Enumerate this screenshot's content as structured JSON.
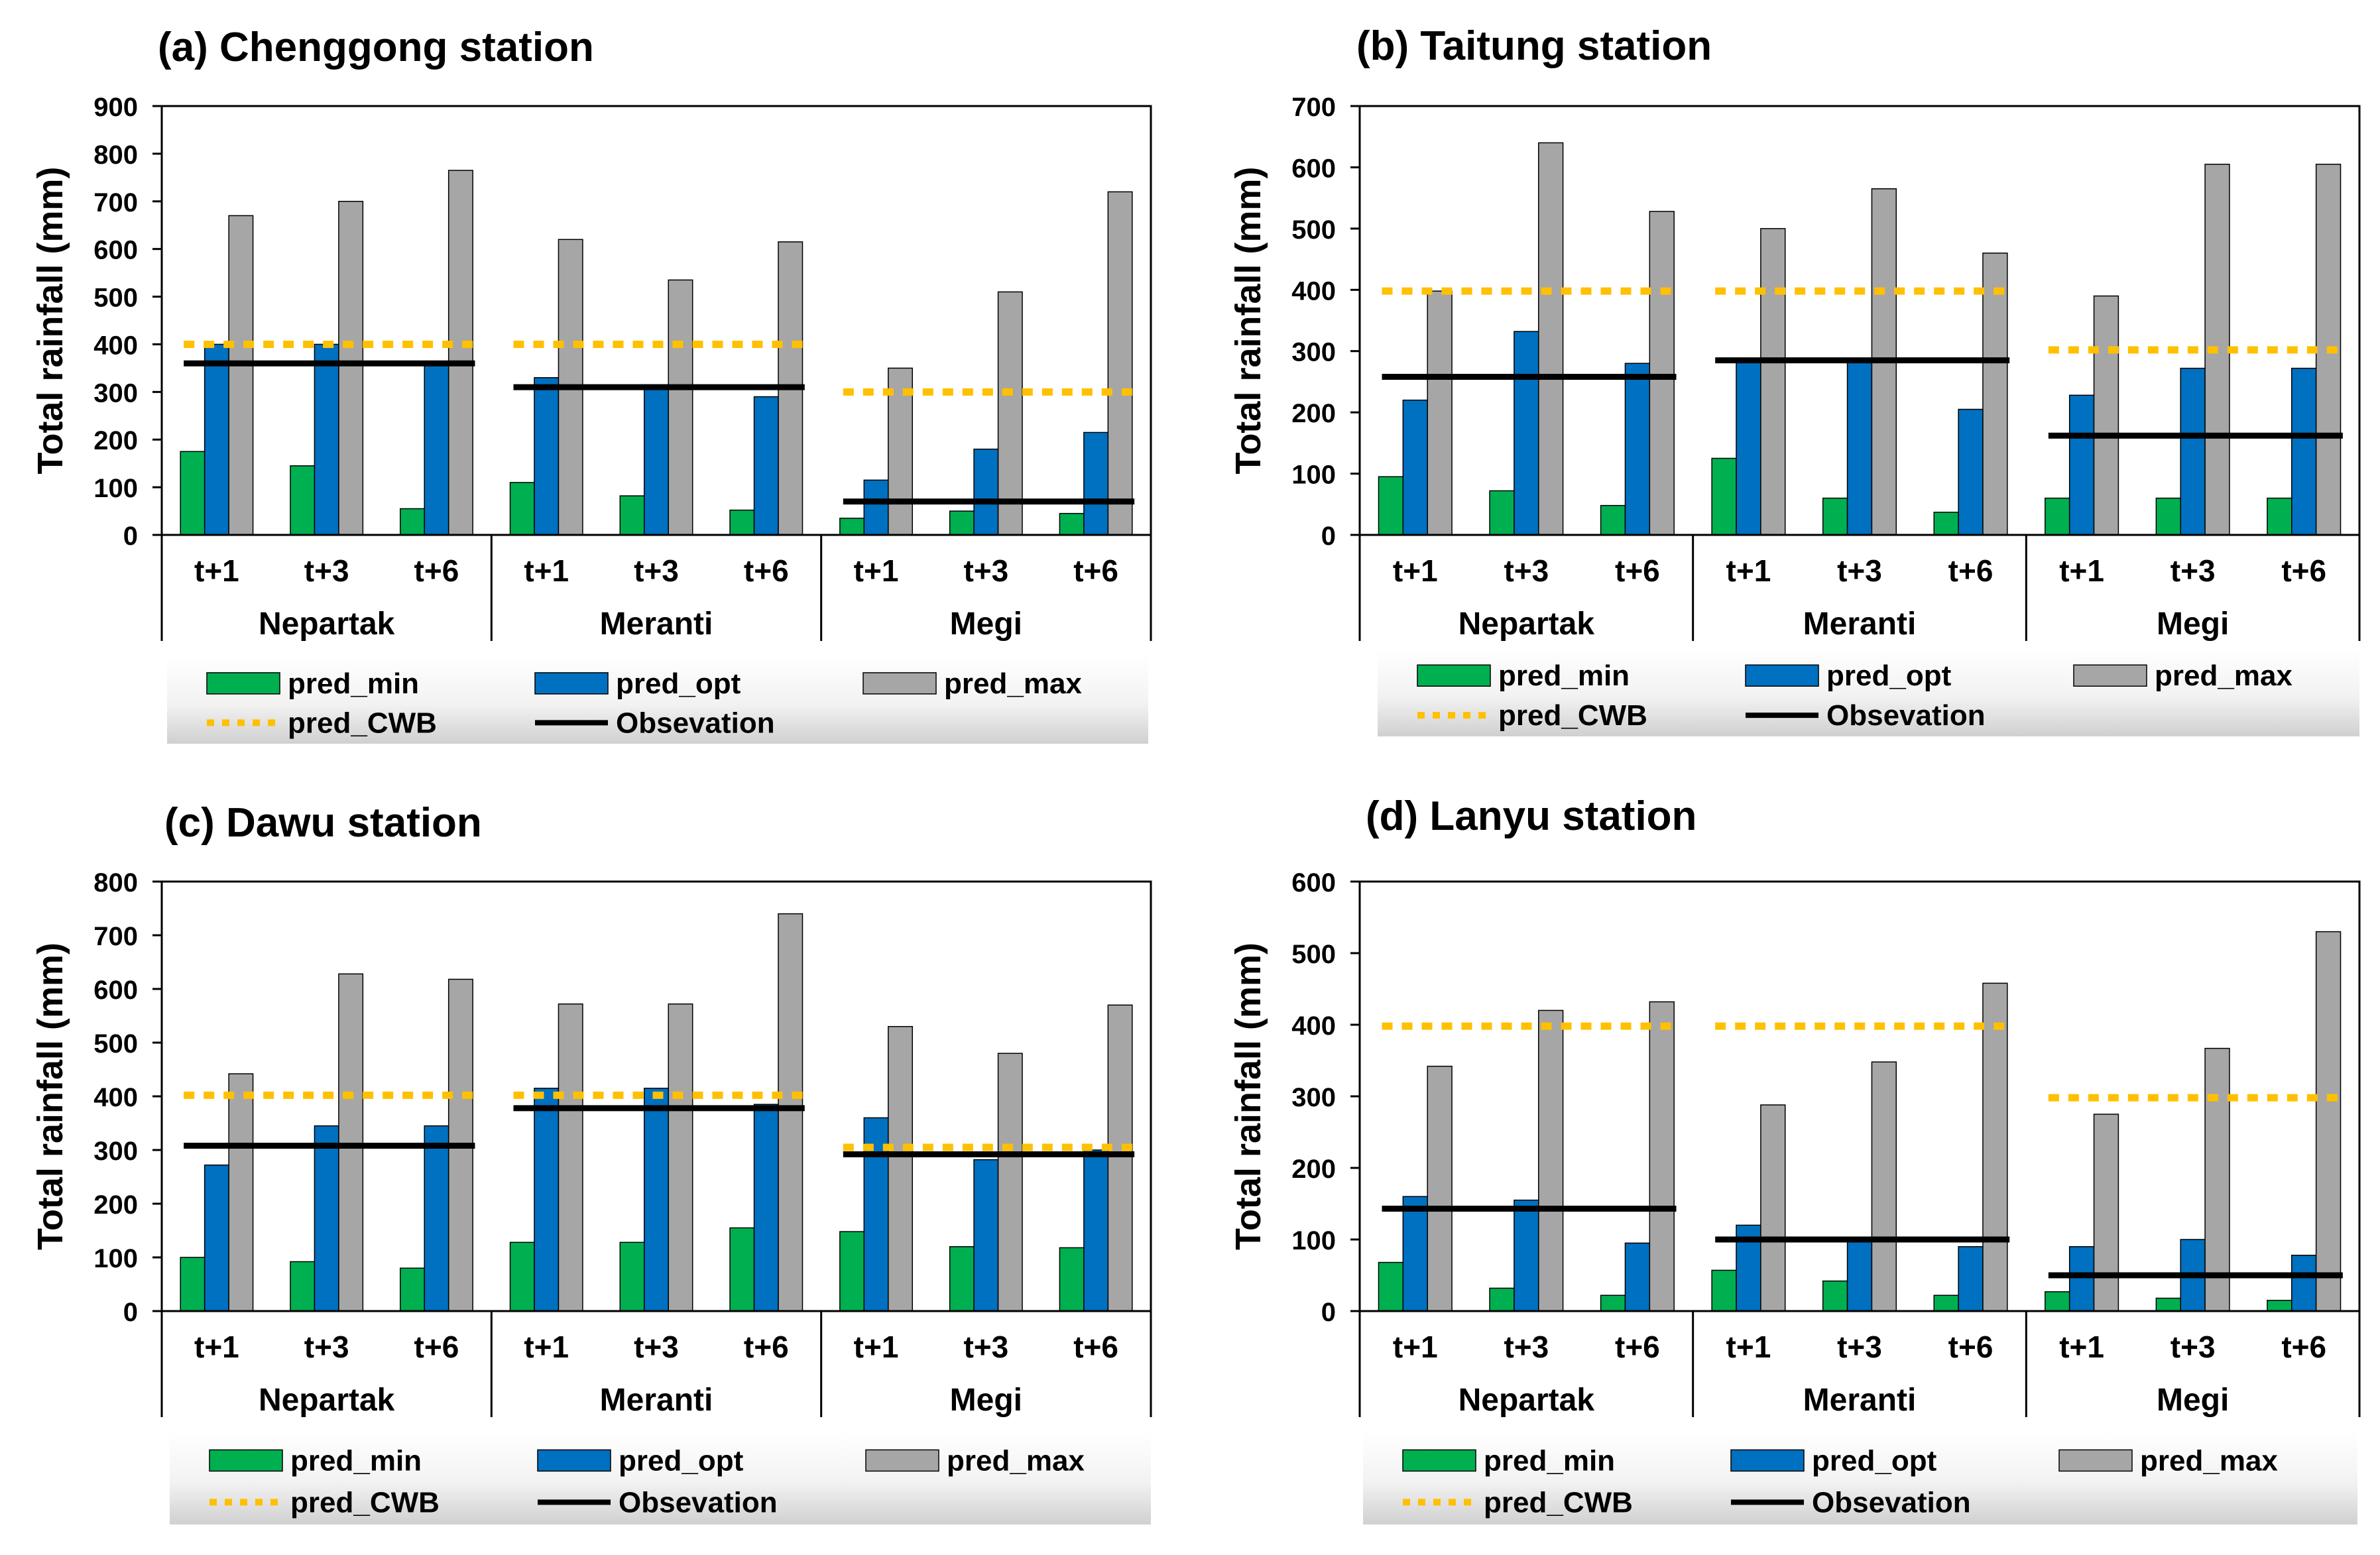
{
  "colors": {
    "pred_min": "#00B050",
    "pred_opt": "#0070C0",
    "pred_max": "#A6A6A6",
    "pred_CWB": "#FFC000",
    "observation": "#000000",
    "legend_bg_top": "#FFFFFF",
    "legend_bg_bottom": "#D9D9D9"
  },
  "legend": {
    "pred_min": "pred_min",
    "pred_opt": "pred_opt",
    "pred_max": "pred_max",
    "pred_CWB": "pred_CWB",
    "observation": "Obsevation"
  },
  "chart_data": [
    {
      "type": "bar",
      "title": "(a) Chenggong station",
      "ylabel": "Total rainfall (mm)",
      "xlabel": "",
      "ylim": [
        0,
        900
      ],
      "yticks": [
        0,
        100,
        200,
        300,
        400,
        500,
        600,
        700,
        800,
        900
      ],
      "groups": [
        "Nepartak",
        "Meranti",
        "Megi"
      ],
      "categories": [
        "t+1",
        "t+3",
        "t+6"
      ],
      "series": [
        {
          "name": "pred_min",
          "values": [
            [
              175,
              145,
              55
            ],
            [
              110,
              82,
              52
            ],
            [
              35,
              50,
              45
            ]
          ]
        },
        {
          "name": "pred_opt",
          "values": [
            [
              400,
              400,
              360
            ],
            [
              330,
              315,
              290
            ],
            [
              115,
              180,
              215
            ]
          ]
        },
        {
          "name": "pred_max",
          "values": [
            [
              670,
              700,
              765
            ],
            [
              620,
              535,
              615
            ],
            [
              350,
              510,
              720
            ]
          ]
        }
      ],
      "pred_CWB": [
        400,
        400,
        300
      ],
      "observation": [
        360,
        310,
        70
      ]
    },
    {
      "type": "bar",
      "title": "(b) Taitung station",
      "ylabel": "Total rainfall (mm)",
      "xlabel": "",
      "ylim": [
        0,
        700
      ],
      "yticks": [
        0,
        100,
        200,
        300,
        400,
        500,
        600,
        700
      ],
      "groups": [
        "Nepartak",
        "Meranti",
        "Megi"
      ],
      "categories": [
        "t+1",
        "t+3",
        "t+6"
      ],
      "series": [
        {
          "name": "pred_min",
          "values": [
            [
              95,
              72,
              48
            ],
            [
              125,
              60,
              37
            ],
            [
              60,
              60,
              60
            ]
          ]
        },
        {
          "name": "pred_opt",
          "values": [
            [
              220,
              332,
              280
            ],
            [
              285,
              285,
              205
            ],
            [
              228,
              272,
              272
            ]
          ]
        },
        {
          "name": "pred_max",
          "values": [
            [
              398,
              640,
              528
            ],
            [
              500,
              565,
              460
            ],
            [
              390,
              605,
              605
            ]
          ]
        }
      ],
      "pred_CWB": [
        398,
        398,
        302
      ],
      "observation": [
        258,
        285,
        162
      ]
    },
    {
      "type": "bar",
      "title": "(c) Dawu station",
      "ylabel": "Total rainfall (mm)",
      "xlabel": "",
      "ylim": [
        0,
        800
      ],
      "yticks": [
        0,
        100,
        200,
        300,
        400,
        500,
        600,
        700,
        800
      ],
      "groups": [
        "Nepartak",
        "Meranti",
        "Megi"
      ],
      "categories": [
        "t+1",
        "t+3",
        "t+6"
      ],
      "series": [
        {
          "name": "pred_min",
          "values": [
            [
              100,
              92,
              80
            ],
            [
              128,
              128,
              155
            ],
            [
              148,
              120,
              118
            ]
          ]
        },
        {
          "name": "pred_opt",
          "values": [
            [
              272,
              345,
              345
            ],
            [
              415,
              415,
              385
            ],
            [
              360,
              282,
              300
            ]
          ]
        },
        {
          "name": "pred_max",
          "values": [
            [
              442,
              628,
              618
            ],
            [
              572,
              572,
              740
            ],
            [
              530,
              480,
              570
            ]
          ]
        }
      ],
      "pred_CWB": [
        402,
        402,
        305
      ],
      "observation": [
        308,
        378,
        292
      ]
    },
    {
      "type": "bar",
      "title": "(d) Lanyu station",
      "ylabel": "Total rainfall (mm)",
      "xlabel": "",
      "ylim": [
        0,
        600
      ],
      "yticks": [
        0,
        100,
        200,
        300,
        400,
        500,
        600
      ],
      "groups": [
        "Nepartak",
        "Meranti",
        "Megi"
      ],
      "categories": [
        "t+1",
        "t+3",
        "t+6"
      ],
      "series": [
        {
          "name": "pred_min",
          "values": [
            [
              68,
              32,
              22
            ],
            [
              57,
              42,
              22
            ],
            [
              27,
              18,
              15
            ]
          ]
        },
        {
          "name": "pred_opt",
          "values": [
            [
              160,
              155,
              95
            ],
            [
              120,
              100,
              90
            ],
            [
              90,
              100,
              78
            ]
          ]
        },
        {
          "name": "pred_max",
          "values": [
            [
              342,
              420,
              432
            ],
            [
              288,
              348,
              458
            ],
            [
              275,
              367,
              530
            ]
          ]
        }
      ],
      "pred_CWB": [
        398,
        398,
        298
      ],
      "observation": [
        143,
        100,
        50
      ]
    }
  ]
}
